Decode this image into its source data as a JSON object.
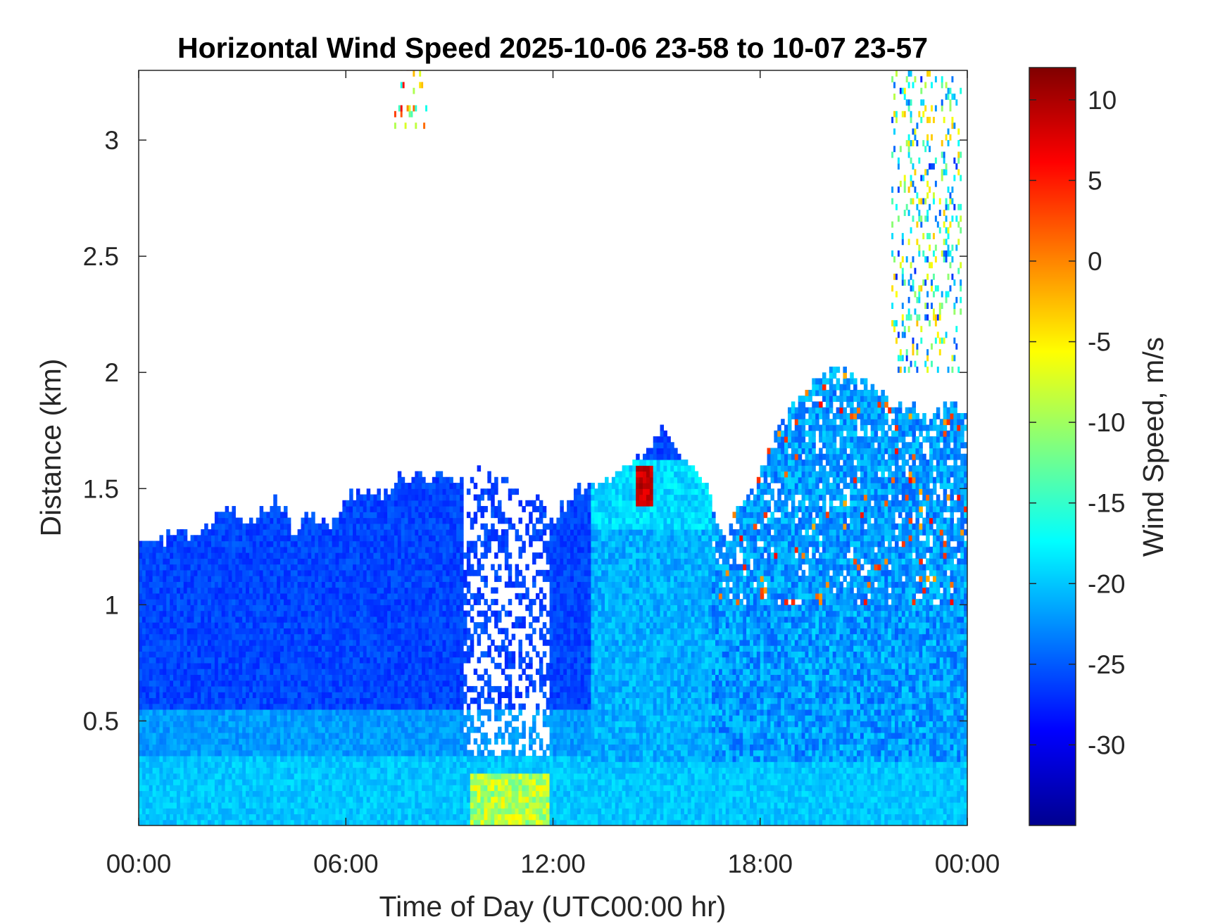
{
  "chart_data": {
    "type": "heatmap",
    "title": "Horizontal Wind Speed 2025-10-06 23-58 to 10-07 23-57",
    "xlabel": "Time of Day (UTC00:00 hr)",
    "ylabel": "Distance (km)",
    "x_tick_labels": [
      "00:00",
      "06:00",
      "12:00",
      "18:00",
      "00:00"
    ],
    "x_tick_hours": [
      0,
      6,
      12,
      18,
      24
    ],
    "xlim_hours": [
      0,
      24
    ],
    "y_ticks": [
      0.5,
      1,
      1.5,
      2,
      2.5,
      3
    ],
    "y_tick_labels": [
      "0.5",
      "1",
      "1.5",
      "2",
      "2.5",
      "3"
    ],
    "ylim": [
      0.05,
      3.3
    ],
    "colorbar": {
      "label": "Wind Speed, m/s",
      "colormap": "jet",
      "range": [
        -35,
        12
      ],
      "ticks": [
        10,
        5,
        0,
        -5,
        -10,
        -15,
        -20,
        -25,
        -30
      ],
      "tick_labels": [
        "10",
        "5",
        "0",
        "-5",
        "-10",
        "-15",
        "-20",
        "-25",
        "-30"
      ]
    },
    "grid": false,
    "cloud_top_km": [
      [
        0.0,
        1.25
      ],
      [
        0.5,
        1.25
      ],
      [
        1.0,
        1.3
      ],
      [
        1.5,
        1.28
      ],
      [
        2.0,
        1.33
      ],
      [
        2.5,
        1.42
      ],
      [
        3.0,
        1.35
      ],
      [
        3.5,
        1.38
      ],
      [
        4.0,
        1.45
      ],
      [
        4.5,
        1.3
      ],
      [
        5.0,
        1.38
      ],
      [
        5.5,
        1.32
      ],
      [
        6.0,
        1.45
      ],
      [
        6.5,
        1.48
      ],
      [
        7.0,
        1.46
      ],
      [
        7.5,
        1.53
      ],
      [
        8.0,
        1.55
      ],
      [
        8.5,
        1.52
      ],
      [
        9.0,
        1.55
      ],
      [
        9.5,
        1.52
      ],
      [
        10.0,
        1.57
      ],
      [
        10.5,
        1.55
      ],
      [
        11.0,
        1.5
      ],
      [
        11.5,
        1.45
      ],
      [
        12.0,
        1.35
      ],
      [
        12.5,
        1.46
      ],
      [
        13.0,
        1.5
      ],
      [
        13.5,
        1.53
      ],
      [
        14.0,
        1.57
      ],
      [
        14.5,
        1.62
      ],
      [
        15.0,
        1.72
      ],
      [
        15.3,
        1.74
      ],
      [
        15.6,
        1.65
      ],
      [
        16.0,
        1.58
      ],
      [
        16.5,
        1.5
      ],
      [
        16.8,
        1.35
      ],
      [
        17.0,
        1.28
      ],
      [
        17.5,
        1.45
      ],
      [
        18.0,
        1.55
      ],
      [
        18.5,
        1.75
      ],
      [
        19.0,
        1.85
      ],
      [
        19.5,
        1.95
      ],
      [
        20.0,
        2.0
      ],
      [
        20.5,
        2.0
      ],
      [
        21.0,
        1.95
      ],
      [
        21.5,
        1.9
      ],
      [
        22.0,
        1.85
      ],
      [
        22.5,
        1.82
      ],
      [
        23.0,
        1.8
      ],
      [
        23.5,
        1.85
      ],
      [
        24.0,
        1.8
      ]
    ],
    "features": [
      {
        "kind": "boundary_layer_band",
        "height_km": [
          0.05,
          0.35
        ],
        "hours": [
          0,
          24
        ],
        "speed_ms": -20
      },
      {
        "kind": "cloud_layer_fill",
        "hours": [
          0,
          24
        ],
        "speed_ms": -26
      },
      {
        "kind": "weak_wind_patch",
        "hours": [
          9.5,
          11.8
        ],
        "height_km": [
          0.05,
          0.25
        ],
        "speed_ms": -7
      },
      {
        "kind": "weak_wind_patch",
        "hours": [
          14.3,
          14.8
        ],
        "height_km": [
          1.45,
          1.6
        ],
        "speed_ms": 8
      },
      {
        "kind": "data_gap",
        "hours": [
          9.3,
          11.8
        ],
        "height_km": [
          0.35,
          1.6
        ]
      },
      {
        "kind": "high_echo",
        "hours": [
          7.4,
          8.3
        ],
        "height_km": [
          3.05,
          3.3
        ],
        "speed_ms": -5
      },
      {
        "kind": "high_echo",
        "hours": [
          21.8,
          23.8
        ],
        "height_km": [
          2.0,
          3.3
        ],
        "speed_ms": -15
      }
    ]
  }
}
